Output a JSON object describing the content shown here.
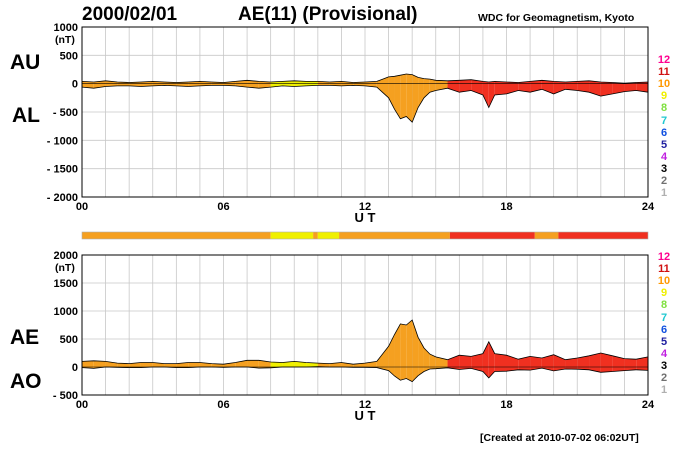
{
  "header": {
    "date": "2000/02/01",
    "title": "AE(11) (Provisional)",
    "source": "WDC for Geomagnetism, Kyoto"
  },
  "footer": {
    "created": "[Created at 2010-07-02 06:02UT]"
  },
  "labels": {
    "au": "AU",
    "al": "AL",
    "ae": "AE",
    "ao": "AO",
    "unit": "(nT)"
  },
  "activity_scale": {
    "levels": [
      "12",
      "11",
      "10",
      "9",
      "8",
      "7",
      "6",
      "5",
      "4",
      "3",
      "2",
      "1"
    ],
    "colors": [
      "#ff0090",
      "#d01010",
      "#ff9900",
      "#f0f000",
      "#80e040",
      "#20c8d0",
      "#1050e0",
      "#2020a0",
      "#c020e0",
      "#000000",
      "#707070",
      "#b0b0b0"
    ]
  },
  "activity_bar": [
    {
      "from": 0,
      "to": 8,
      "color": "#f5a020"
    },
    {
      "from": 8,
      "to": 9.8,
      "color": "#f0f000"
    },
    {
      "from": 9.8,
      "to": 10,
      "color": "#f5a020"
    },
    {
      "from": 10,
      "to": 10.9,
      "color": "#f0f000"
    },
    {
      "from": 10.9,
      "to": 15.6,
      "color": "#f5a020"
    },
    {
      "from": 15.6,
      "to": 19.2,
      "color": "#f03020"
    },
    {
      "from": 19.2,
      "to": 20.2,
      "color": "#f5a020"
    },
    {
      "from": 20.2,
      "to": 24,
      "color": "#f03020"
    }
  ],
  "chart_data": [
    {
      "type": "area",
      "panel": "AU/AL",
      "xlabel": "U T",
      "ylabel": "(nT)",
      "xlim": [
        0,
        24
      ],
      "ylim": [
        -2000,
        1000
      ],
      "xticks": [
        0,
        6,
        12,
        18,
        24
      ],
      "xtick_labels": [
        "00",
        "06",
        "12",
        "18",
        "24"
      ],
      "yticks": [
        1000,
        500,
        0,
        -500,
        -1000,
        -1500,
        -2000
      ],
      "ytick_labels": [
        "1000",
        "500",
        "0",
        "- 500",
        "- 1000",
        "- 1500",
        "- 2000"
      ],
      "grid": true,
      "x": [
        0,
        0.5,
        1,
        1.5,
        2,
        2.5,
        3,
        3.5,
        4,
        4.5,
        5,
        5.5,
        6,
        6.5,
        7,
        7.5,
        8,
        8.5,
        9,
        9.5,
        10,
        10.5,
        11,
        11.5,
        12,
        12.5,
        13,
        13.25,
        13.5,
        13.75,
        14,
        14.25,
        14.5,
        14.75,
        15,
        15.5,
        16,
        16.5,
        17,
        17.25,
        17.5,
        18,
        18.5,
        19,
        19.5,
        20,
        20.5,
        21,
        21.5,
        22,
        22.5,
        23,
        23.5,
        24
      ],
      "series": [
        {
          "name": "AU",
          "values": [
            40,
            30,
            50,
            30,
            20,
            30,
            40,
            30,
            20,
            30,
            40,
            30,
            20,
            40,
            60,
            40,
            30,
            40,
            50,
            40,
            40,
            30,
            40,
            20,
            30,
            40,
            120,
            130,
            150,
            170,
            160,
            110,
            90,
            80,
            60,
            50,
            60,
            70,
            40,
            30,
            40,
            30,
            20,
            40,
            60,
            40,
            30,
            40,
            50,
            30,
            20,
            10,
            20,
            30
          ]
        },
        {
          "name": "AL",
          "values": [
            -60,
            -80,
            -50,
            -40,
            -40,
            -50,
            -40,
            -30,
            -40,
            -50,
            -40,
            -30,
            -30,
            -40,
            -60,
            -80,
            -60,
            -40,
            -50,
            -40,
            -30,
            -30,
            -40,
            -30,
            -40,
            -60,
            -250,
            -450,
            -620,
            -580,
            -680,
            -420,
            -250,
            -150,
            -120,
            -80,
            -150,
            -120,
            -200,
            -420,
            -200,
            -180,
            -120,
            -150,
            -100,
            -180,
            -100,
            -120,
            -150,
            -220,
            -180,
            -140,
            -120,
            -150
          ]
        },
        {
          "name": "level_color",
          "values": [
            10,
            10,
            10,
            10,
            10,
            10,
            10,
            10,
            10,
            10,
            10,
            10,
            10,
            10,
            10,
            10,
            9,
            9,
            9,
            9,
            10,
            10,
            10,
            10,
            10,
            10,
            10,
            10,
            10,
            10,
            10,
            10,
            10,
            10,
            10,
            11,
            11,
            11,
            11,
            11,
            11,
            11,
            11,
            11,
            11,
            11,
            11,
            11,
            11,
            11,
            11,
            11,
            11,
            11
          ]
        }
      ]
    },
    {
      "type": "area",
      "panel": "AE/AO",
      "xlabel": "U T",
      "ylabel": "(nT)",
      "xlim": [
        0,
        24
      ],
      "ylim": [
        -500,
        2000
      ],
      "xticks": [
        0,
        6,
        12,
        18,
        24
      ],
      "xtick_labels": [
        "00",
        "06",
        "12",
        "18",
        "24"
      ],
      "yticks": [
        2000,
        1500,
        1000,
        500,
        0,
        -500
      ],
      "ytick_labels": [
        "2000",
        "1500",
        "1000",
        "500",
        "0",
        "- 500"
      ],
      "grid": true,
      "x": [
        0,
        0.5,
        1,
        1.5,
        2,
        2.5,
        3,
        3.5,
        4,
        4.5,
        5,
        5.5,
        6,
        6.5,
        7,
        7.5,
        8,
        8.5,
        9,
        9.5,
        10,
        10.5,
        11,
        11.5,
        12,
        12.5,
        13,
        13.25,
        13.5,
        13.75,
        14,
        14.25,
        14.5,
        14.75,
        15,
        15.5,
        16,
        16.5,
        17,
        17.25,
        17.5,
        18,
        18.5,
        19,
        19.5,
        20,
        20.5,
        21,
        21.5,
        22,
        22.5,
        23,
        23.5,
        24
      ],
      "series": [
        {
          "name": "AE",
          "values": [
            100,
            110,
            100,
            70,
            60,
            80,
            80,
            60,
            60,
            80,
            80,
            60,
            50,
            80,
            120,
            120,
            90,
            80,
            100,
            80,
            70,
            60,
            80,
            50,
            70,
            100,
            370,
            580,
            770,
            750,
            840,
            530,
            340,
            230,
            180,
            130,
            210,
            190,
            240,
            450,
            240,
            210,
            140,
            190,
            160,
            220,
            130,
            160,
            200,
            250,
            200,
            150,
            140,
            180
          ]
        },
        {
          "name": "AO",
          "values": [
            -10,
            -25,
            0,
            -5,
            -10,
            -10,
            0,
            0,
            -10,
            -10,
            0,
            0,
            -5,
            0,
            0,
            -20,
            -15,
            0,
            0,
            0,
            5,
            0,
            0,
            -5,
            -5,
            -10,
            -65,
            -160,
            -235,
            -205,
            -260,
            -155,
            -80,
            -35,
            -30,
            -15,
            -45,
            -25,
            -80,
            -195,
            -80,
            -75,
            -50,
            -55,
            -20,
            -70,
            -35,
            -40,
            -50,
            -95,
            -80,
            -65,
            -50,
            -60
          ]
        },
        {
          "name": "level_color",
          "values": [
            10,
            10,
            10,
            10,
            10,
            10,
            10,
            10,
            10,
            10,
            10,
            10,
            10,
            10,
            10,
            10,
            9,
            9,
            9,
            9,
            10,
            10,
            10,
            10,
            10,
            10,
            10,
            10,
            10,
            10,
            10,
            10,
            10,
            10,
            10,
            11,
            11,
            11,
            11,
            11,
            11,
            11,
            11,
            11,
            11,
            11,
            11,
            11,
            11,
            11,
            11,
            11,
            11,
            11
          ]
        }
      ]
    }
  ]
}
